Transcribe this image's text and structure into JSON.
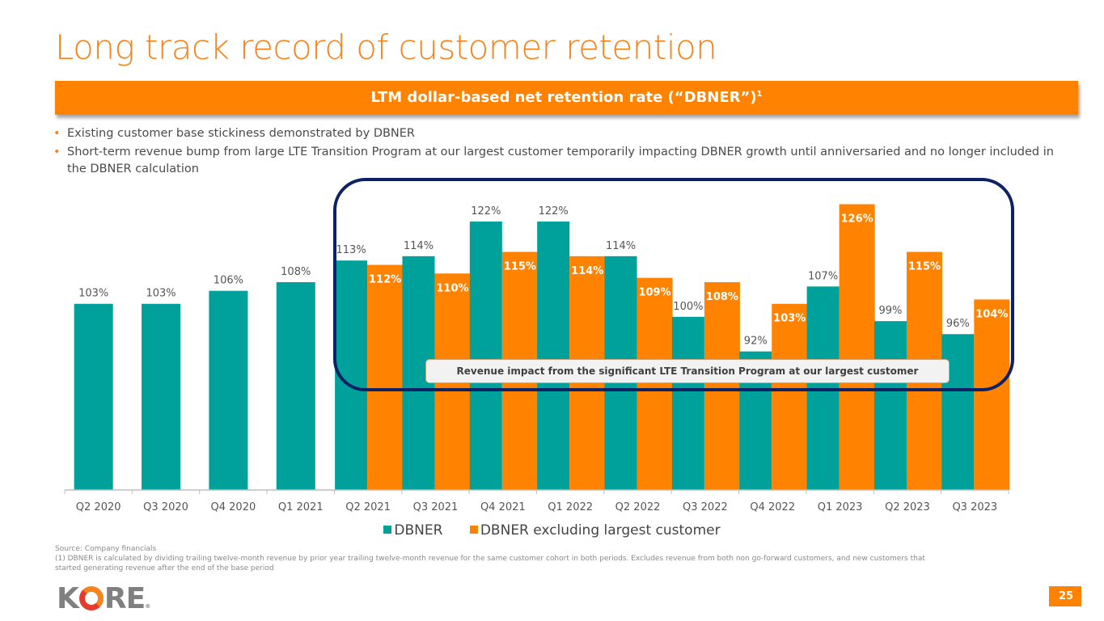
{
  "title": "Long track record of customer retention",
  "banner": {
    "text": "LTM dollar-based net retention rate (“DBNER”)",
    "superscript": "1"
  },
  "bullets": [
    "Existing customer base stickiness demonstrated by DBNER",
    "Short-term revenue bump from large LTE Transition Program at our largest customer temporarily impacting DBNER growth until anniversaried and no longer included in the DBNER calculation"
  ],
  "colors": {
    "dbner": "#00A19A",
    "dbner_ex": "#FF8200",
    "accent": "#F5841F",
    "highlight_box": "#0D2265"
  },
  "callout": "Revenue impact from the significant LTE Transition Program at our largest customer",
  "chart_data": {
    "type": "bar",
    "title": "LTM dollar-based net retention rate (DBNER)",
    "xlabel": "",
    "ylabel": "",
    "ylim": [
      60,
      130
    ],
    "grid": false,
    "legend_position": "bottom",
    "categories": [
      "Q2 2020",
      "Q3 2020",
      "Q4 2020",
      "Q1 2021",
      "Q2 2021",
      "Q3 2021",
      "Q4 2021",
      "Q1 2022",
      "Q2 2022",
      "Q3 2022",
      "Q4 2022",
      "Q1 2023",
      "Q2 2023",
      "Q3 2023"
    ],
    "series": [
      {
        "name": "DBNER",
        "values": [
          103,
          103,
          106,
          108,
          113,
          114,
          122,
          122,
          114,
          100,
          92,
          107,
          99,
          96
        ]
      },
      {
        "name": "DBNER excluding largest customer",
        "values": [
          null,
          null,
          null,
          null,
          112,
          110,
          115,
          114,
          109,
          108,
          103,
          126,
          115,
          104
        ]
      }
    ],
    "value_labels_suffix": "%"
  },
  "legend": [
    {
      "label": "DBNER"
    },
    {
      "label": "DBNER excluding largest customer"
    }
  ],
  "footnote": {
    "source": "Source: Company financials",
    "note": "(1) DBNER is calculated by dividing trailing twelve-month revenue by prior year trailing twelve-month revenue for the same customer cohort in both periods. Excludes revenue from both non go-forward customers, and new customers that started generating revenue after the end of the base period"
  },
  "logo": {
    "text_k": "K",
    "text_re": "RE",
    "reg": "®"
  },
  "page_number": "25"
}
